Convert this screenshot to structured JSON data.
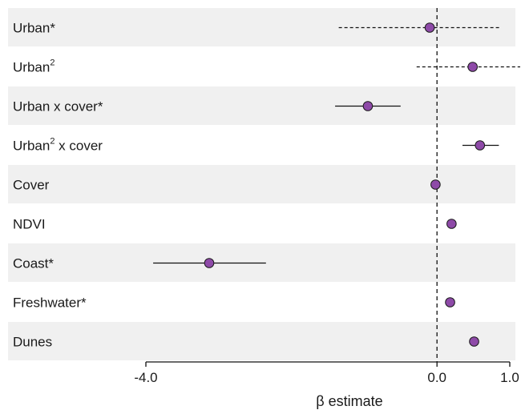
{
  "chart_data": {
    "type": "forest",
    "xlabel": "β estimate",
    "xlim": [
      -4.0,
      1.0
    ],
    "x_ticks": [
      {
        "value": -4.0,
        "label": "-4.0"
      },
      {
        "value": 0.0,
        "label": "0.0"
      },
      {
        "value": 1.0,
        "label": "1.0"
      }
    ],
    "reference_line": 0.0,
    "point_color": "#8e4aa8",
    "band_color": "#f0f0f0",
    "rows": [
      {
        "label": "Urban*",
        "base": "Urban",
        "sup": "",
        "tail": "*",
        "estimate": -0.1,
        "ci_low": -1.35,
        "ci_high": 0.87,
        "ci_style": "dashed",
        "banded": true
      },
      {
        "label": "Urban2",
        "base": "Urban",
        "sup": "2",
        "tail": "",
        "estimate": 0.49,
        "ci_low": -0.28,
        "ci_high": 1.3,
        "ci_style": "dashed",
        "banded": false
      },
      {
        "label": "Urban x cover*",
        "base": "Urban x cover",
        "sup": "",
        "tail": "*",
        "estimate": -0.95,
        "ci_low": -1.4,
        "ci_high": -0.5,
        "ci_style": "solid",
        "banded": true
      },
      {
        "label": "Urban2 x cover",
        "base": "Urban",
        "sup": "2",
        "tail": " x cover",
        "estimate": 0.59,
        "ci_low": 0.35,
        "ci_high": 0.85,
        "ci_style": "solid",
        "banded": false
      },
      {
        "label": "Cover",
        "base": "Cover",
        "sup": "",
        "tail": "",
        "estimate": -0.02,
        "ci_low": -0.08,
        "ci_high": 0.04,
        "ci_style": "solid",
        "banded": true
      },
      {
        "label": "NDVI",
        "base": "NDVI",
        "sup": "",
        "tail": "",
        "estimate": 0.2,
        "ci_low": 0.17,
        "ci_high": 0.23,
        "ci_style": "solid",
        "banded": false
      },
      {
        "label": "Coast*",
        "base": "Coast",
        "sup": "",
        "tail": "*",
        "estimate": -3.13,
        "ci_low": -3.9,
        "ci_high": -2.35,
        "ci_style": "solid",
        "banded": true
      },
      {
        "label": "Freshwater*",
        "base": "Freshwater",
        "sup": "",
        "tail": "*",
        "estimate": 0.18,
        "ci_low": 0.15,
        "ci_high": 0.21,
        "ci_style": "solid",
        "banded": false
      },
      {
        "label": "Dunes",
        "base": "Dunes",
        "sup": "",
        "tail": "",
        "estimate": 0.51,
        "ci_low": 0.45,
        "ci_high": 0.57,
        "ci_style": "solid",
        "banded": true
      }
    ]
  }
}
